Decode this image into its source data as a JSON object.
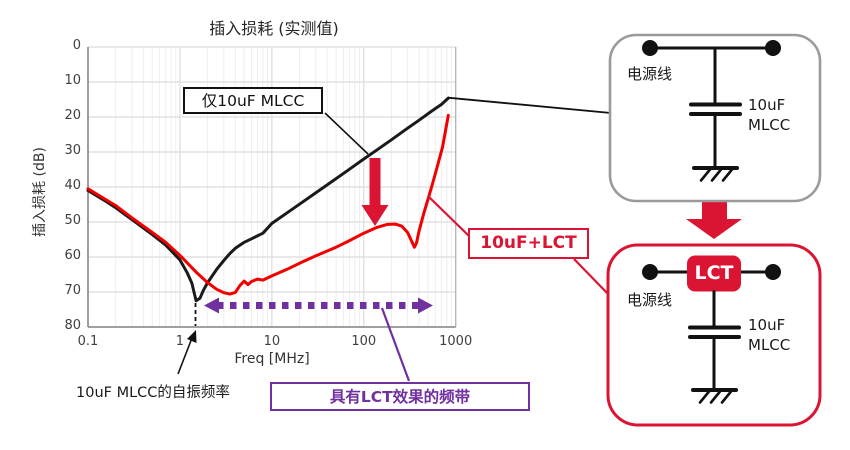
{
  "figure_title": "插入损耗 (实测值)",
  "chart_data": {
    "type": "line",
    "title": "插入损耗 (实测值)",
    "xlabel": "Freq [MHz]",
    "ylabel": "插入损耗 (dB)",
    "x_scale": "log",
    "xlim": [
      0.1,
      1000
    ],
    "ylim": [
      0,
      80
    ],
    "y_axis_inverted": true,
    "grid": true,
    "x_ticks": [
      0.1,
      1,
      10,
      100,
      1000
    ],
    "x_tick_labels": [
      "0.1",
      "1",
      "10",
      "100",
      "1000"
    ],
    "y_ticks": [
      0,
      10,
      20,
      30,
      40,
      50,
      60,
      70,
      80
    ],
    "y_tick_labels": [
      "0",
      "10",
      "20",
      "30",
      "40",
      "50",
      "60",
      "70",
      "80"
    ],
    "series": [
      {
        "name": "仅10uF MLCC",
        "color": "#1a1a1a",
        "points": [
          [
            0.1,
            41
          ],
          [
            0.15,
            43.8
          ],
          [
            0.2,
            45.9
          ],
          [
            0.3,
            49.3
          ],
          [
            0.5,
            53.6
          ],
          [
            0.7,
            56.6
          ],
          [
            1,
            60.8
          ],
          [
            1.2,
            64.5
          ],
          [
            1.35,
            67.5
          ],
          [
            1.5,
            72.5
          ],
          [
            1.65,
            71.8
          ],
          [
            1.8,
            69.5
          ],
          [
            2,
            67.3
          ],
          [
            2.5,
            63.6
          ],
          [
            3,
            61
          ],
          [
            3.5,
            59
          ],
          [
            4,
            57.5
          ],
          [
            5,
            55.8
          ],
          [
            6,
            54.8
          ],
          [
            8,
            53.2
          ],
          [
            10,
            50.4
          ],
          [
            15,
            47.2
          ],
          [
            20,
            44.9
          ],
          [
            30,
            41.7
          ],
          [
            50,
            37.6
          ],
          [
            70,
            34.9
          ],
          [
            100,
            32
          ],
          [
            150,
            28.8
          ],
          [
            200,
            26.5
          ],
          [
            300,
            23.2
          ],
          [
            400,
            20.9
          ],
          [
            550,
            18.3
          ],
          [
            700,
            16.4
          ],
          [
            830,
            14.6
          ]
        ]
      },
      {
        "name": "10uF+LCT",
        "color": "#f20000",
        "points": [
          [
            0.1,
            40.5
          ],
          [
            0.2,
            45.3
          ],
          [
            0.3,
            48.8
          ],
          [
            0.5,
            53
          ],
          [
            0.7,
            55.8
          ],
          [
            1,
            59.5
          ],
          [
            1.5,
            64.3
          ],
          [
            2,
            67.3
          ],
          [
            2.5,
            69.2
          ],
          [
            3,
            70.2
          ],
          [
            3.5,
            70.6
          ],
          [
            4,
            70.1
          ],
          [
            4.5,
            68.1
          ],
          [
            5,
            66.9
          ],
          [
            5.5,
            67.9
          ],
          [
            6,
            67
          ],
          [
            7,
            66.3
          ],
          [
            8,
            66.6
          ],
          [
            10,
            65.4
          ],
          [
            15,
            63.4
          ],
          [
            20,
            61.8
          ],
          [
            30,
            59.7
          ],
          [
            50,
            57.2
          ],
          [
            70,
            55.3
          ],
          [
            100,
            53.2
          ],
          [
            140,
            51.5
          ],
          [
            180,
            50.7
          ],
          [
            220,
            50.6
          ],
          [
            260,
            51.2
          ],
          [
            300,
            53
          ],
          [
            330,
            55.3
          ],
          [
            355,
            57.2
          ],
          [
            375,
            56
          ],
          [
            400,
            52.5
          ],
          [
            450,
            47.5
          ],
          [
            500,
            43.5
          ],
          [
            560,
            39
          ],
          [
            640,
            33.5
          ],
          [
            720,
            28.5
          ],
          [
            830,
            19.5
          ]
        ]
      }
    ],
    "annotations": {
      "self_resonance_freq_mhz": 1.5,
      "lct_effect_band_mhz": [
        2,
        560
      ]
    }
  },
  "labels": {
    "mlcc_only": "仅10uF MLCC",
    "lct_combo": "10uF+LCT",
    "self_resonance": "10uF MLCC的自振频率",
    "lct_band": "具有LCT效果的频带"
  },
  "circuit_top": {
    "power_line": "电源线",
    "cap_value": "10uF",
    "cap_type": "MLCC"
  },
  "circuit_bottom": {
    "power_line": "电源线",
    "lct_chip": "LCT",
    "cap_value": "10uF",
    "cap_type": "MLCC"
  },
  "colors": {
    "brand_red": "#dc1433",
    "curve_red": "#f20000",
    "curve_black": "#1a1a1a",
    "purple": "#7030a0",
    "grid_major": "#dcdcdc",
    "grid_minor": "#efeeee",
    "axis_gray": "#808080"
  }
}
